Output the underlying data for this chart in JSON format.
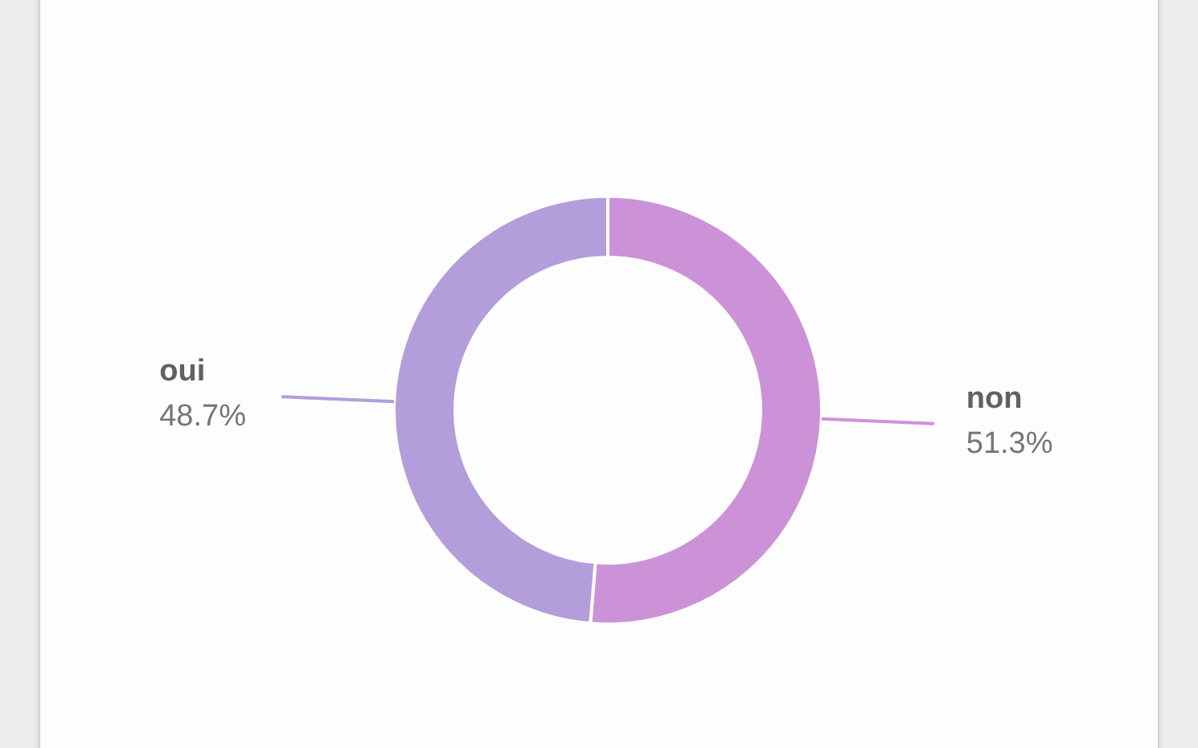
{
  "chart_data": {
    "type": "donut",
    "categories": [
      "non",
      "oui"
    ],
    "values": [
      51.3,
      48.7
    ],
    "value_labels": [
      "51.3%",
      "48.7%"
    ],
    "colors": [
      "#cc92d8",
      "#b39ddb"
    ]
  }
}
